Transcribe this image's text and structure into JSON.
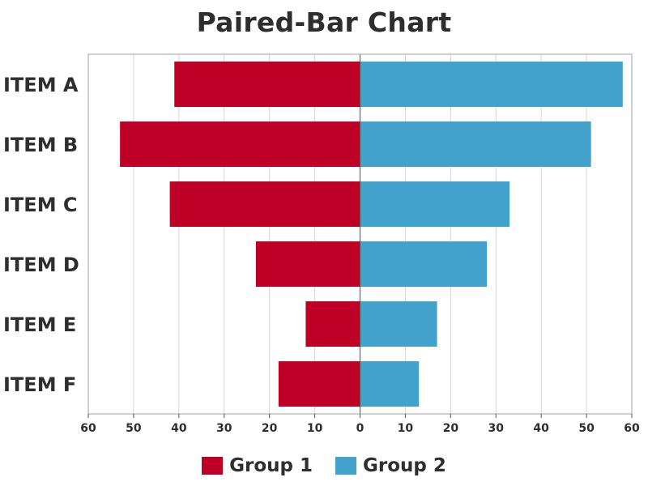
{
  "chart_data": {
    "type": "bar",
    "orientation": "horizontal-paired",
    "title": "Paired-Bar Chart",
    "categories": [
      "ITEM A",
      "ITEM B",
      "ITEM C",
      "ITEM D",
      "ITEM E",
      "ITEM F"
    ],
    "series": [
      {
        "name": "Group 1",
        "color": "#be0027",
        "side": "left",
        "values": [
          41,
          53,
          42,
          23,
          12,
          18
        ]
      },
      {
        "name": "Group 2",
        "color": "#42a2cc",
        "side": "right",
        "values": [
          58,
          51,
          33,
          28,
          17,
          13
        ]
      }
    ],
    "xlim": [
      -60,
      60
    ],
    "x_tick_labels": [
      "60",
      "50",
      "40",
      "30",
      "20",
      "10",
      "0",
      "10",
      "20",
      "30",
      "40",
      "50",
      "60"
    ],
    "grid": true,
    "legend_position": "bottom"
  }
}
